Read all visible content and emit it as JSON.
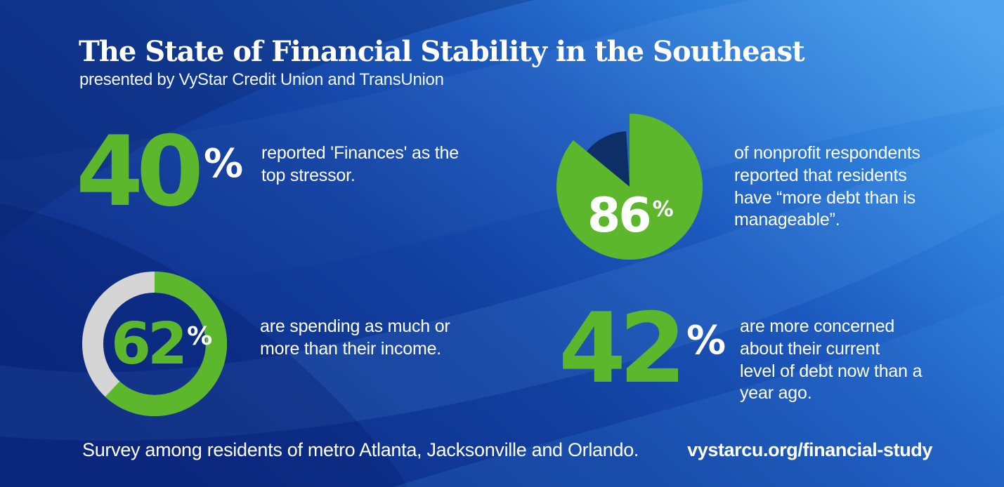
{
  "header": {
    "title": "The State of Financial Stability in the Southeast",
    "subtitle": "presented by VyStar Credit Union and TransUnion"
  },
  "stats": {
    "stressor": {
      "value": "40",
      "unit": "%",
      "description": "reported 'Finances' as the\ntop stressor."
    },
    "nonprofit_debt": {
      "value": "86",
      "unit": "%",
      "description": "of nonprofit respondents\nreported that residents\nhave “more debt than is\nmanageable”."
    },
    "spending": {
      "value": "62",
      "unit": "%",
      "description": "are spending as much or\nmore than their income."
    },
    "debt_concern": {
      "value": "42",
      "unit": "%",
      "description": "are more concerned\nabout their current\nlevel of debt now than a\nyear ago."
    }
  },
  "footer": {
    "note": "Survey among residents of metro Atlanta, Jacksonville and Orlando.",
    "url": "vystarcu.org/financial-study"
  },
  "colors": {
    "accent_green": "#5cb72c",
    "navy_slice": "#0d2f66",
    "gray_slice": "#d5d5d6",
    "text_white": "#ffffff",
    "bg_dark_navy": "#0c2b80",
    "bg_bright_blue": "#47a0ec"
  },
  "chart_data": [
    {
      "type": "pie",
      "style": "exploded-wedge",
      "title": "Nonprofit respondents: residents have more debt than is manageable",
      "labels": [
        "more debt than is manageable",
        "remainder"
      ],
      "values": [
        86,
        14
      ],
      "colors": [
        "#5cb72c",
        "#0d2f66"
      ],
      "annotation": "86%",
      "legend_position": "none"
    },
    {
      "type": "pie",
      "style": "donut",
      "title": "Spending as much or more than their income",
      "labels": [
        "spending as much or more than income",
        "remainder"
      ],
      "values": [
        62,
        38
      ],
      "colors": [
        "#5cb72c",
        "#d5d5d6"
      ],
      "annotation": "62%",
      "legend_position": "none"
    }
  ]
}
